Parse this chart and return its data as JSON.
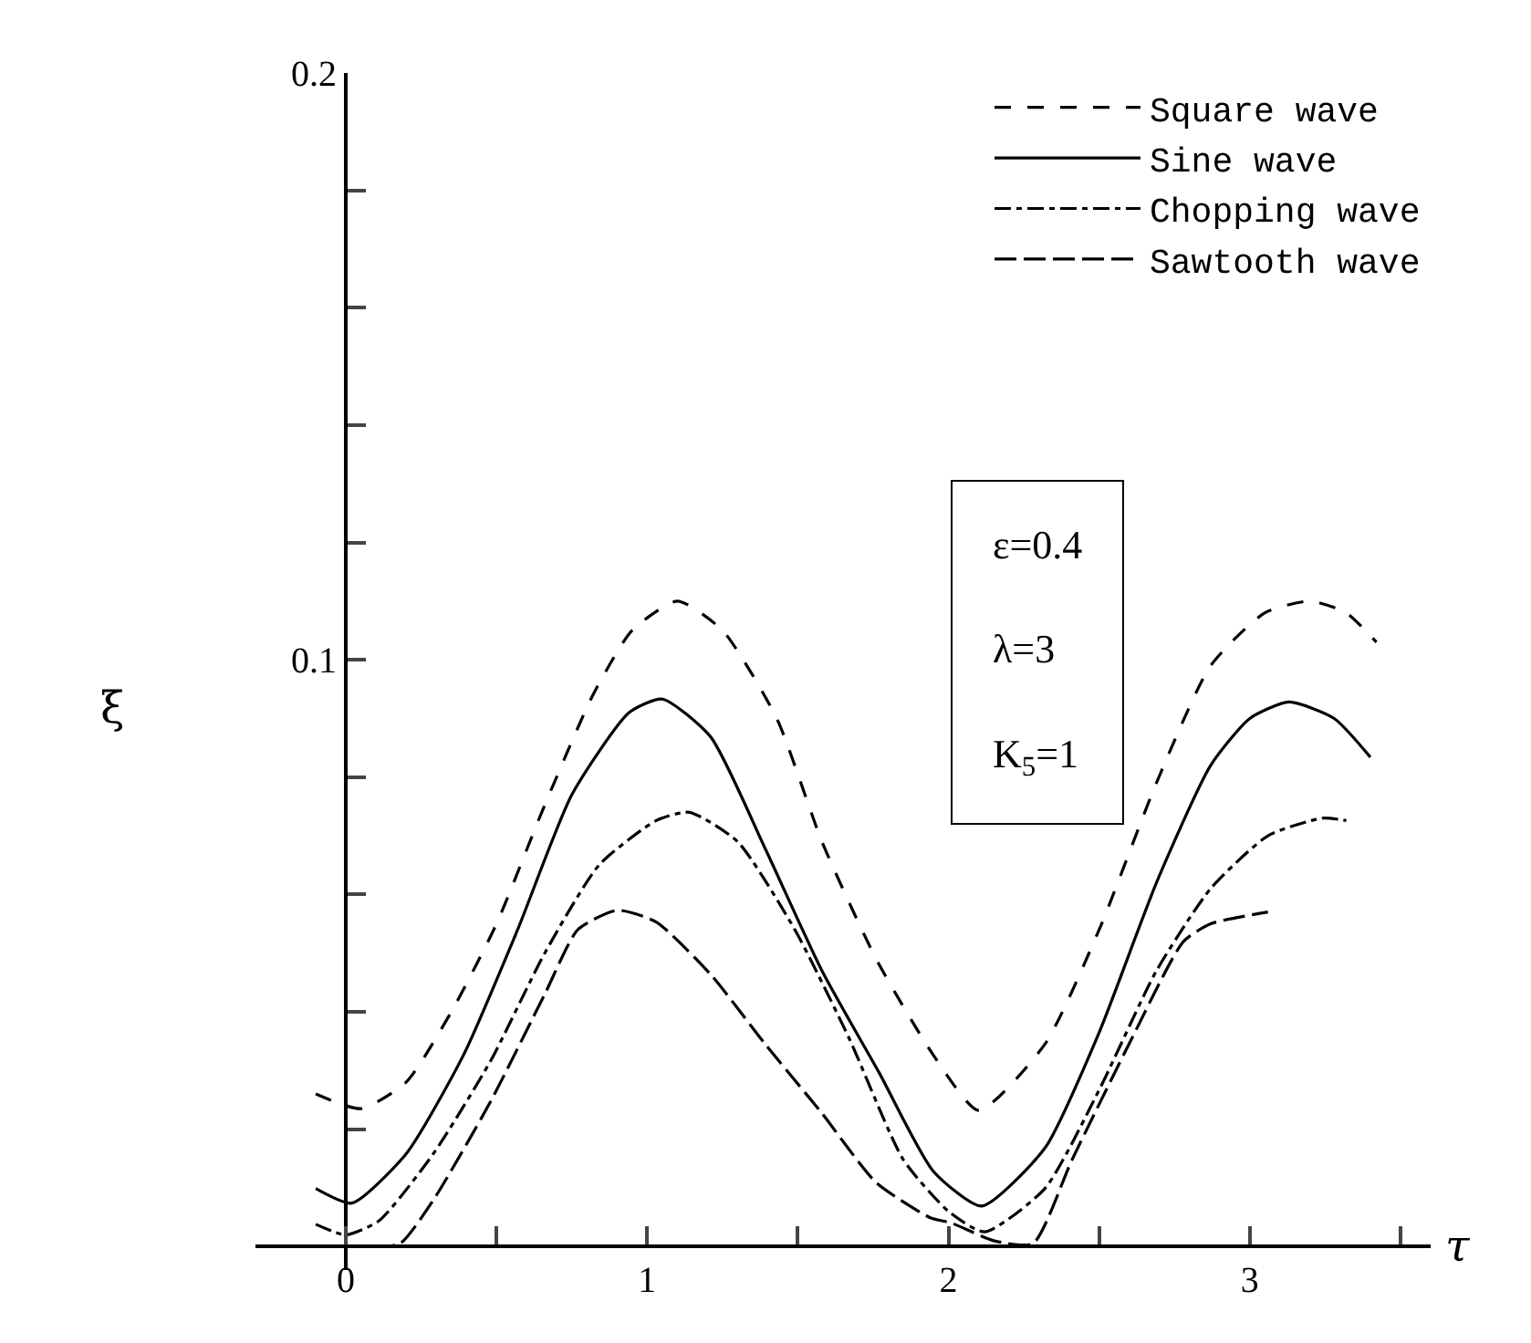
{
  "chart_data": {
    "type": "line",
    "xlabel": "τ",
    "ylabel": "ξ",
    "xlim": [
      -0.3,
      3.6
    ],
    "ylim": [
      -0.004,
      0.2
    ],
    "xticks": [
      0,
      {
        "value": 0.5,
        "label": null
      },
      1,
      {
        "value": 1.5,
        "label": null
      },
      2,
      {
        "value": 2.5,
        "label": null
      },
      3,
      {
        "value": 3.5,
        "label": null
      }
    ],
    "yticks": [
      {
        "value": 0.02,
        "label": null
      },
      {
        "value": 0.04,
        "label": null
      },
      {
        "value": 0.06,
        "label": null
      },
      {
        "value": 0.08,
        "label": null
      },
      0.1,
      {
        "value": 0.12,
        "label": null
      },
      {
        "value": 0.14,
        "label": null
      },
      {
        "value": 0.16,
        "label": null
      },
      {
        "value": 0.18,
        "label": null
      },
      0.2
    ],
    "grid": false,
    "legend": "top right",
    "annotations": [
      "ε=0.4",
      "λ=3",
      "K$_{5}$=1"
    ],
    "series": [
      {
        "name": "Square wave",
        "color": "#000000",
        "line_style": "dashed",
        "x": [
          -0.1,
          0.05,
          0.2,
          0.35,
          0.5,
          0.65,
          0.82,
          0.95,
          1.1,
          1.25,
          1.43,
          1.58,
          1.76,
          1.95,
          2.1,
          2.32,
          2.5,
          2.69,
          2.87,
          3.05,
          3.2,
          3.32,
          3.42
        ],
        "values": [
          0.026,
          0.0235,
          0.028,
          0.04,
          0.055,
          0.074,
          0.094,
          0.105,
          0.11,
          0.105,
          0.09,
          0.069,
          0.049,
          0.0326,
          0.0232,
          0.0345,
          0.054,
          0.079,
          0.099,
          0.108,
          0.11,
          0.108,
          0.103
        ]
      },
      {
        "name": "Sine wave",
        "color": "#000000",
        "line_style": "solid",
        "x": [
          -0.1,
          0.02,
          0.2,
          0.39,
          0.57,
          0.75,
          0.94,
          1.05,
          1.21,
          1.39,
          1.58,
          1.77,
          1.95,
          2.11,
          2.32,
          2.5,
          2.69,
          2.87,
          3.0,
          3.13,
          3.28,
          3.4
        ],
        "values": [
          0.0099,
          0.0074,
          0.0158,
          0.0326,
          0.054,
          0.077,
          0.091,
          0.0933,
          0.0869,
          0.068,
          0.047,
          0.0296,
          0.0128,
          0.0069,
          0.0168,
          0.0365,
          0.062,
          0.082,
          0.09,
          0.0928,
          0.09,
          0.0834
        ]
      },
      {
        "name": "Chopping wave",
        "color": "#000000",
        "line_style": "dashdot",
        "x": [
          -0.1,
          0,
          0.11,
          0.29,
          0.48,
          0.66,
          0.84,
          1.03,
          1.14,
          1.3,
          1.49,
          1.67,
          1.85,
          2.0,
          2.12,
          2.32,
          2.5,
          2.69,
          2.87,
          3.06,
          3.24,
          3.32
        ],
        "values": [
          0.0038,
          0.002,
          0.0044,
          0.0158,
          0.0316,
          0.05,
          0.065,
          0.0726,
          0.074,
          0.069,
          0.054,
          0.0355,
          0.0148,
          0.006,
          0.0025,
          0.0099,
          0.0267,
          0.047,
          0.061,
          0.07,
          0.073,
          0.0726
        ]
      },
      {
        "name": "Sawtooth wave",
        "color": "#000000",
        "line_style": "longdash",
        "x": [
          0.09,
          0.18,
          0.29,
          0.48,
          0.66,
          0.77,
          0.9,
          1.03,
          1.21,
          1.39,
          1.58,
          1.76,
          1.94,
          2.01,
          2.15,
          2.28,
          2.41,
          2.6,
          2.78,
          2.87,
          3.06
        ],
        "values": [
          0,
          0.0005,
          0.0079,
          0.0247,
          0.043,
          0.054,
          0.0573,
          0.0553,
          0.0464,
          0.0346,
          0.0227,
          0.0109,
          0.0049,
          0.004,
          0.001,
          0.0005,
          0.0148,
          0.0346,
          0.052,
          0.055,
          0.057
        ]
      }
    ]
  }
}
